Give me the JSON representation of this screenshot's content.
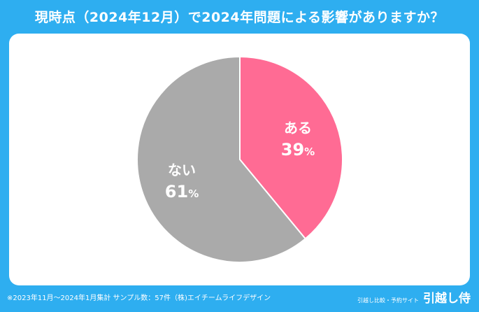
{
  "header": {
    "title": "現時点（2024年12月）で2024年問題による影響がありますか？"
  },
  "chart_data": {
    "type": "pie",
    "slices": [
      {
        "label": "ある",
        "value": 39,
        "color": "#ff6b94"
      },
      {
        "label": "ない",
        "value": 61,
        "color": "#aaaaaa"
      }
    ],
    "value_suffix": "%"
  },
  "footer": {
    "note": "※2023年11月～2024年1月集計 サンプル数：57件（株)エイチームライフデザイン",
    "brand_tagline": "引越し比較・予約サイト",
    "brand_name": "引越し侍"
  }
}
